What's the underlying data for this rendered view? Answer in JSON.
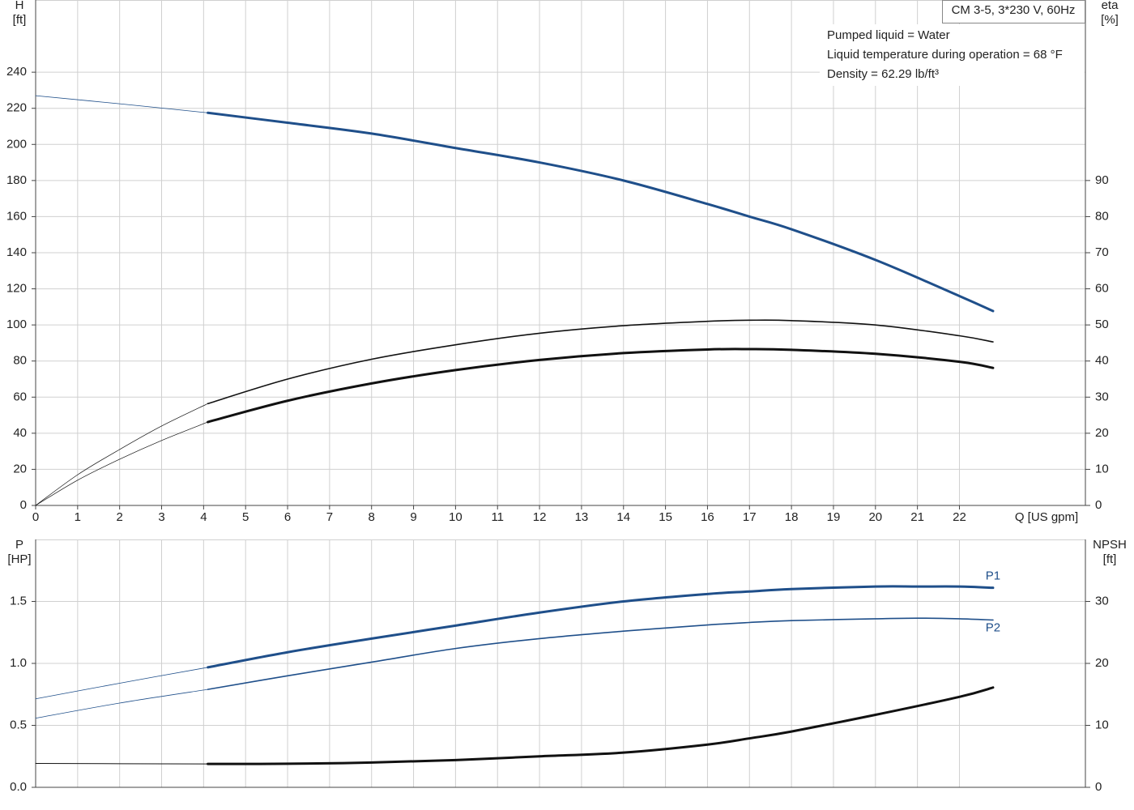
{
  "chart_data": [
    {
      "type": "line",
      "title": "CM 3-5, 3*230 V, 60Hz",
      "annotations": [
        "Pumped liquid = Water",
        "Liquid temperature during operation = 68 °F",
        "Density = 62.29 lb/ft³"
      ],
      "ylabel": [
        "H",
        "[ft]"
      ],
      "y2label": [
        "eta",
        "[%]"
      ],
      "xlabel": "Q [US gpm]",
      "xlim": [
        0,
        25
      ],
      "xticks": [
        0,
        1,
        2,
        3,
        4,
        5,
        6,
        7,
        8,
        9,
        10,
        11,
        12,
        13,
        14,
        15,
        16,
        17,
        18,
        19,
        20,
        21,
        22
      ],
      "ylim": [
        0,
        280
      ],
      "yticks": [
        0,
        20,
        40,
        60,
        80,
        100,
        120,
        140,
        160,
        180,
        200,
        220,
        240
      ],
      "y2lim": [
        0,
        140
      ],
      "y2ticks": [
        0,
        10,
        20,
        30,
        40,
        50,
        60,
        70,
        80,
        90
      ],
      "grid": true,
      "series": [
        {
          "color": "#1f4f8a",
          "width": 0.8,
          "x": [
            0,
            2,
            4.1
          ],
          "values": [
            227,
            222.5,
            217.5
          ]
        },
        {
          "color": "#1f4f8a",
          "width": 3,
          "x": [
            4.1,
            6,
            8,
            10,
            12,
            14,
            16,
            17,
            18,
            20,
            22,
            22.8
          ],
          "values": [
            217.5,
            212,
            206,
            198,
            190,
            180,
            167,
            160,
            153,
            136,
            116,
            107.7
          ]
        },
        {
          "color": "#111111",
          "width": 0.7,
          "axis": "y2",
          "x": [
            0,
            1,
            2,
            3,
            4.1
          ],
          "values": [
            0,
            8.5,
            15.5,
            22,
            28.2
          ]
        },
        {
          "color": "#111111",
          "width": 1.6,
          "axis": "y2",
          "x": [
            4.1,
            6,
            8,
            10,
            12,
            14,
            16,
            17,
            18,
            20,
            22,
            22.8
          ],
          "values": [
            28.2,
            35,
            40.5,
            44.5,
            47.7,
            49.8,
            51,
            51.3,
            51.2,
            50,
            47,
            45.3
          ]
        },
        {
          "color": "#111111",
          "width": 0.7,
          "axis": "y2",
          "x": [
            0,
            1,
            2,
            3,
            4.1
          ],
          "values": [
            0,
            7,
            12.8,
            18,
            23.1
          ]
        },
        {
          "color": "#111111",
          "width": 3,
          "axis": "y2",
          "x": [
            4.1,
            6,
            8,
            10,
            12,
            14,
            16,
            17,
            18,
            20,
            22,
            22.8
          ],
          "values": [
            23.1,
            29,
            33.8,
            37.5,
            40.3,
            42.2,
            43.2,
            43.3,
            43.1,
            42,
            39.8,
            38.1
          ]
        }
      ]
    },
    {
      "type": "line",
      "ylabel": [
        "P",
        "[HP]"
      ],
      "y2label": [
        "NPSH",
        "[ft]"
      ],
      "xlim": [
        0,
        25
      ],
      "xticks": [
        0,
        1,
        2,
        3,
        4,
        5,
        6,
        7,
        8,
        9,
        10,
        11,
        12,
        13,
        14,
        15,
        16,
        17,
        18,
        19,
        20,
        21,
        22
      ],
      "ylim": [
        0,
        2
      ],
      "yticks": [
        {
          "value": 0,
          "label": "0.0"
        },
        0.5,
        {
          "value": 1,
          "label": "1.0"
        },
        1.5
      ],
      "y2lim": [
        0,
        40
      ],
      "y2ticks": [
        0,
        10,
        20,
        30
      ],
      "grid": true,
      "series": [
        {
          "color": "#1f4f8a",
          "width": 0.8,
          "x": [
            0,
            2,
            4.1
          ],
          "values": [
            0.714,
            0.84,
            0.968
          ]
        },
        {
          "name": "P1",
          "color": "#1f4f8a",
          "width": 3,
          "x": [
            4.1,
            6,
            8,
            10,
            12,
            14,
            16,
            17,
            18,
            20,
            21,
            22,
            22.8
          ],
          "values": [
            0.968,
            1.09,
            1.2,
            1.305,
            1.41,
            1.5,
            1.56,
            1.58,
            1.6,
            1.62,
            1.62,
            1.62,
            1.61
          ]
        },
        {
          "color": "#1f4f8a",
          "width": 0.8,
          "x": [
            0,
            2,
            4.1
          ],
          "values": [
            0.558,
            0.68,
            0.79
          ]
        },
        {
          "name": "P2",
          "color": "#1f4f8a",
          "width": 1.6,
          "x": [
            4.1,
            6,
            8,
            10,
            12,
            14,
            16,
            17,
            18,
            20,
            21,
            22,
            22.8
          ],
          "values": [
            0.79,
            0.9,
            1.01,
            1.12,
            1.2,
            1.26,
            1.31,
            1.33,
            1.345,
            1.36,
            1.365,
            1.36,
            1.35
          ]
        },
        {
          "color": "#111111",
          "width": 1,
          "axis": "y2",
          "x": [
            0,
            4.1
          ],
          "values": [
            3.85,
            3.77
          ]
        },
        {
          "color": "#111111",
          "width": 3,
          "axis": "y2",
          "x": [
            4.1,
            6,
            8,
            10,
            12,
            14,
            16,
            17,
            18,
            20,
            22,
            22.8
          ],
          "values": [
            3.77,
            3.8,
            4.0,
            4.4,
            5.0,
            5.6,
            6.9,
            7.9,
            9.0,
            11.7,
            14.6,
            16.1
          ]
        }
      ]
    }
  ]
}
